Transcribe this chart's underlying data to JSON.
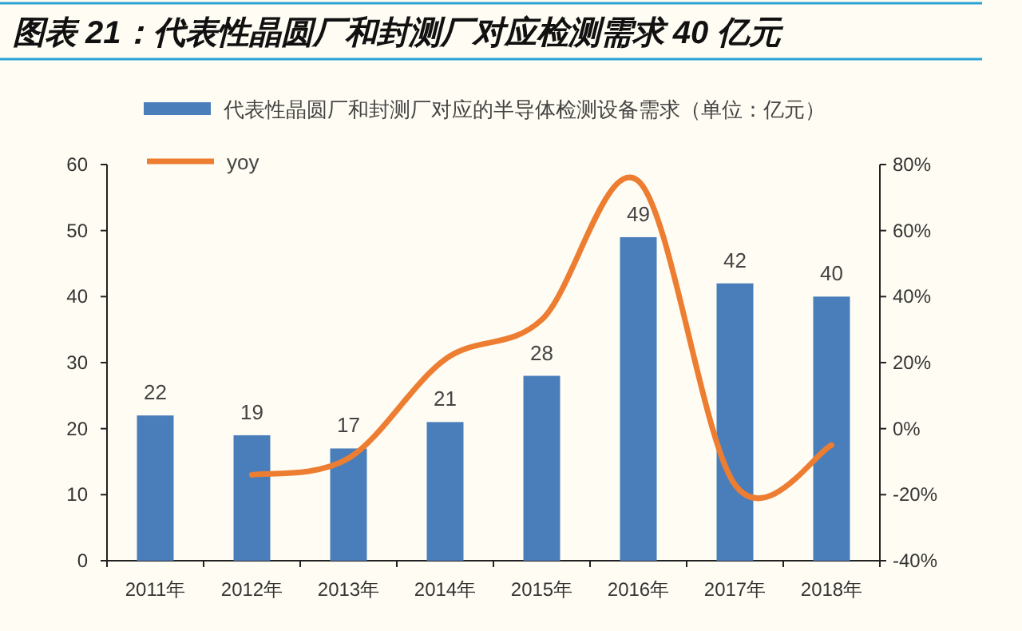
{
  "chart_data": {
    "type": "bar",
    "title": "图表 21：代表性晶圆厂和封测厂对应检测需求 40 亿元",
    "categories": [
      "2011年",
      "2012年",
      "2013年",
      "2014年",
      "2015年",
      "2016年",
      "2017年",
      "2018年"
    ],
    "series": [
      {
        "name": "代表性晶圆厂和封测厂对应的半导体检测设备需求（单位：亿元）",
        "color": "#4a7ebb",
        "values": [
          22,
          19,
          17,
          21,
          28,
          49,
          42,
          40
        ],
        "value_labels": [
          "22",
          "19",
          "17",
          "21",
          "28",
          "49",
          "42",
          "40"
        ]
      },
      {
        "name": "yoy",
        "type": "line",
        "axis": "y2",
        "color": "#ed7d31",
        "values": [
          null,
          -14,
          -9,
          21,
          33,
          75,
          -17,
          -5
        ]
      }
    ],
    "ylim": [
      0,
      60
    ],
    "yticks": [
      0,
      10,
      20,
      30,
      40,
      50,
      60
    ],
    "y2lim": [
      -40,
      80
    ],
    "y2ticks": [
      {
        "value": -40,
        "label": "-40%"
      },
      {
        "value": -20,
        "label": "-20%"
      },
      {
        "value": 0,
        "label": "0%"
      },
      {
        "value": 20,
        "label": "20%"
      },
      {
        "value": 40,
        "label": "40%"
      },
      {
        "value": 60,
        "label": "60%"
      },
      {
        "value": 80,
        "label": "80%"
      }
    ],
    "legend": "top",
    "grid": false
  }
}
